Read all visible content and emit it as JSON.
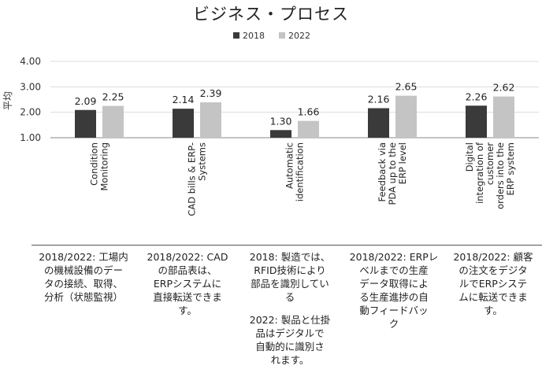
{
  "chart_data": {
    "type": "bar",
    "title": "ビジネス・プロセス",
    "ylabel": "平均",
    "xlabel": "",
    "ylim": [
      1.0,
      4.0
    ],
    "yticks": [
      "1.00",
      "2.00",
      "3.00",
      "4.00"
    ],
    "grid": true,
    "legend_position": "top-center",
    "categories": [
      [
        "Condition",
        "Monitoring"
      ],
      [
        "CAD bills & ERP-",
        "Systems"
      ],
      [
        "Automatic",
        "identification"
      ],
      [
        "Feedback via",
        "PDA up to the",
        "ERP level"
      ],
      [
        "Digital",
        "integration of",
        "customer",
        "orders into the",
        "ERP system"
      ]
    ],
    "series": [
      {
        "name": "2018",
        "color": "#3a3a3a",
        "values": [
          2.09,
          2.14,
          1.3,
          2.16,
          2.26
        ],
        "labels": [
          "2.09",
          "2.14",
          "1.30",
          "2.16",
          "2.26"
        ]
      },
      {
        "name": "2022",
        "color": "#c4c4c4",
        "values": [
          2.25,
          2.39,
          1.66,
          2.65,
          2.62
        ],
        "labels": [
          "2.25",
          "2.39",
          "1.66",
          "2.65",
          "2.62"
        ]
      }
    ]
  },
  "notes": [
    {
      "paragraphs": [
        "2018/2022: 工場内の機械設備のデータの接続、取得、分析（状態監視）"
      ],
      "lines": [
        [
          "2018/2022: 工場内",
          "の機械設備のデー",
          "タの接続、取得、",
          "分析（状態監視）"
        ]
      ]
    },
    {
      "paragraphs": [
        "2018/2022: CADの部品表は、ERPシステムに直接転送できます。"
      ],
      "lines": [
        [
          "2018/2022: CAD",
          "の部品表は、",
          "ERPシステムに",
          "直接転送できま",
          "す。"
        ]
      ]
    },
    {
      "paragraphs": [
        "2018: 製造では、RFID技術により部品を識別している",
        "2022: 製品と仕掛品はデジタルで自動的に識別されます。"
      ],
      "lines": [
        [
          "2018: 製造では、",
          "RFID技術により",
          "部品を識別してい",
          "る"
        ],
        [
          "2022: 製品と仕掛",
          "品はデジタルで",
          "自動的に識別さ",
          "れます。"
        ]
      ]
    },
    {
      "paragraphs": [
        "2018/2022: ERPレベルまでの生産データ取得による生産進捗の自動フィードバック"
      ],
      "lines": [
        [
          "2018/2022: ERPレ",
          "ベルまでの生産",
          "データ取得によ",
          "る生産進捗の自",
          "動フィードバッ",
          "ク"
        ]
      ]
    },
    {
      "paragraphs": [
        "2018/2022: 顧客の注文をデジタルでERPシステムに転送できます。"
      ],
      "lines": [
        [
          "2018/2022: 顧客",
          "の注文をデジタ",
          "ルでERPシステ",
          "ムに転送できま",
          "す。"
        ]
      ]
    }
  ]
}
